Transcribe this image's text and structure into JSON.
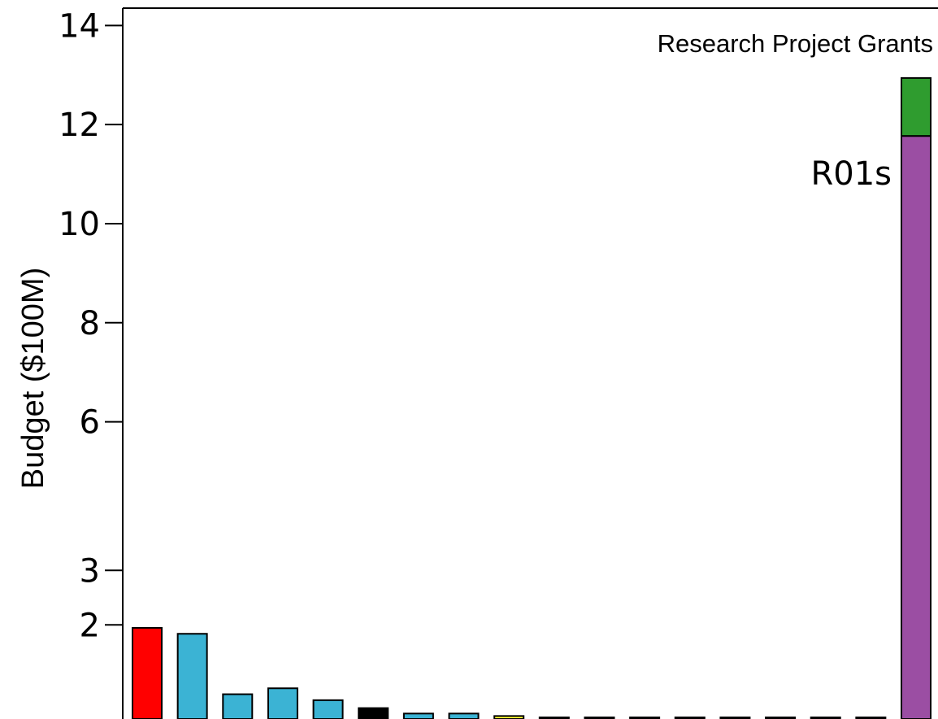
{
  "chart_data": {
    "type": "bar",
    "title": "Research Project Grants",
    "xlabel": "",
    "ylabel": "Budget ($100M)",
    "yticks": [
      2,
      3,
      6,
      8,
      10,
      12,
      14
    ],
    "ylim": [
      0,
      14.35
    ],
    "grid": false,
    "legend": "none",
    "annotations": [
      {
        "text": "R01s"
      }
    ],
    "series": [
      {
        "values": [
          1.84,
          1.72,
          0.5,
          0.62,
          0.38,
          0.22,
          0.11,
          0.11,
          0.06,
          0.01,
          0.01,
          0.01,
          0.01,
          0.01,
          0.01,
          0.01,
          0.01,
          11.77
        ],
        "colors": [
          "#ff0000",
          "#3bb3d4",
          "#3bb3d4",
          "#3bb3d4",
          "#3bb3d4",
          "#000000",
          "#3bb3d4",
          "#3bb3d4",
          "#ffff33",
          "#3bb3d4",
          "#3bb3d4",
          "#3bb3d4",
          "#3bb3d4",
          "#3bb3d4",
          "#3bb3d4",
          "#3bb3d4",
          "#3bb3d4",
          "#9b4ea3"
        ]
      },
      {
        "values": [
          0,
          0,
          0,
          0,
          0,
          0,
          0,
          0,
          0,
          0,
          0,
          0,
          0,
          0,
          0,
          0,
          0,
          1.17
        ],
        "colors": [
          "#2f9c2f",
          "#2f9c2f",
          "#2f9c2f",
          "#2f9c2f",
          "#2f9c2f",
          "#2f9c2f",
          "#2f9c2f",
          "#2f9c2f",
          "#2f9c2f",
          "#2f9c2f",
          "#2f9c2f",
          "#2f9c2f",
          "#2f9c2f",
          "#2f9c2f",
          "#2f9c2f",
          "#2f9c2f",
          "#2f9c2f",
          "#2f9c2f"
        ]
      }
    ],
    "tick_positions": [
      1.9,
      3,
      6,
      8,
      10,
      12,
      14
    ]
  }
}
